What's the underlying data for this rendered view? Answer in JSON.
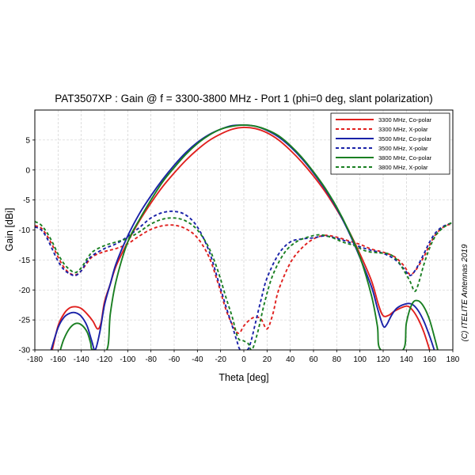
{
  "chart_data": {
    "type": "line",
    "title": "PAT3507XP : Gain @ f = 3300-3800 MHz - Port 1 (phi=0 deg, slant polarization)",
    "xlabel": "Theta [deg]",
    "ylabel": "Gain [dBi]",
    "xlim": [
      -180,
      180
    ],
    "ylim": [
      -30,
      10
    ],
    "xticks": [
      -180,
      -160,
      -140,
      -120,
      -100,
      -80,
      -60,
      -40,
      -20,
      0,
      20,
      40,
      60,
      80,
      100,
      120,
      140,
      160,
      180
    ],
    "yticks": [
      -30,
      -25,
      -20,
      -15,
      -10,
      -5,
      0,
      5
    ],
    "grid": true,
    "legend_position": "top-right",
    "credit": "(C) ITELITE Antennas 2019",
    "series": [
      {
        "name": "3300 MHz, Co-polar",
        "color": "#e0201e",
        "dash": "solid",
        "points": [
          [
            -165,
            -30
          ],
          [
            -160,
            -26
          ],
          [
            -155,
            -24
          ],
          [
            -150,
            -23
          ],
          [
            -145,
            -22.8
          ],
          [
            -140,
            -23.1
          ],
          [
            -135,
            -24
          ],
          [
            -130,
            -25.2
          ],
          [
            -126,
            -26.5
          ],
          [
            -123,
            -25.5
          ],
          [
            -120,
            -22
          ],
          [
            -115,
            -19
          ],
          [
            -110,
            -16
          ],
          [
            -100,
            -12
          ],
          [
            -90,
            -8.5
          ],
          [
            -80,
            -5.5
          ],
          [
            -70,
            -2.8
          ],
          [
            -60,
            -0.5
          ],
          [
            -50,
            1.6
          ],
          [
            -40,
            3.4
          ],
          [
            -30,
            4.9
          ],
          [
            -20,
            6
          ],
          [
            -10,
            6.8
          ],
          [
            0,
            7.1
          ],
          [
            10,
            6.9
          ],
          [
            20,
            6.2
          ],
          [
            30,
            5
          ],
          [
            40,
            3.3
          ],
          [
            50,
            1.3
          ],
          [
            60,
            -1
          ],
          [
            70,
            -3.6
          ],
          [
            80,
            -6.6
          ],
          [
            90,
            -10
          ],
          [
            100,
            -14
          ],
          [
            110,
            -18.5
          ],
          [
            116,
            -22.5
          ],
          [
            120,
            -24.3
          ],
          [
            125,
            -24.2
          ],
          [
            130,
            -23.5
          ],
          [
            140,
            -22.7
          ],
          [
            145,
            -23.3
          ],
          [
            150,
            -24.8
          ],
          [
            155,
            -27
          ],
          [
            160,
            -30
          ]
        ]
      },
      {
        "name": "3300 MHz, X-polar",
        "color": "#e0201e",
        "dash": "dashed",
        "points": [
          [
            -180,
            -9.3
          ],
          [
            -175,
            -9.6
          ],
          [
            -170,
            -10.8
          ],
          [
            -165,
            -12.5
          ],
          [
            -160,
            -14.5
          ],
          [
            -155,
            -16.2
          ],
          [
            -150,
            -17.2
          ],
          [
            -145,
            -17.5
          ],
          [
            -140,
            -16.8
          ],
          [
            -135,
            -15.5
          ],
          [
            -130,
            -14.4
          ],
          [
            -120,
            -13.6
          ],
          [
            -110,
            -13.1
          ],
          [
            -100,
            -12.3
          ],
          [
            -90,
            -11
          ],
          [
            -80,
            -9.9
          ],
          [
            -70,
            -9.3
          ],
          [
            -60,
            -9.2
          ],
          [
            -50,
            -9.8
          ],
          [
            -40,
            -11.3
          ],
          [
            -30,
            -14.5
          ],
          [
            -22,
            -19
          ],
          [
            -15,
            -23.5
          ],
          [
            -8,
            -26.5
          ],
          [
            -4,
            -27.2
          ],
          [
            0,
            -26
          ],
          [
            5,
            -25
          ],
          [
            10,
            -24.5
          ],
          [
            15,
            -24.9
          ],
          [
            20,
            -26.5
          ],
          [
            25,
            -24
          ],
          [
            30,
            -20
          ],
          [
            40,
            -15.5
          ],
          [
            50,
            -13
          ],
          [
            60,
            -11.5
          ],
          [
            70,
            -10.9
          ],
          [
            80,
            -11.2
          ],
          [
            90,
            -11.8
          ],
          [
            100,
            -12.4
          ],
          [
            110,
            -13.2
          ],
          [
            120,
            -13.7
          ],
          [
            130,
            -14.5
          ],
          [
            138,
            -16
          ],
          [
            143,
            -17.4
          ],
          [
            148,
            -16.7
          ],
          [
            155,
            -14.5
          ],
          [
            160,
            -12.5
          ],
          [
            165,
            -10.8
          ],
          [
            170,
            -9.8
          ],
          [
            175,
            -9.2
          ],
          [
            180,
            -9
          ]
        ]
      },
      {
        "name": "3500 MHz, Co-polar",
        "color": "#1a22a8",
        "dash": "solid",
        "points": [
          [
            -166,
            -30
          ],
          [
            -160,
            -26.3
          ],
          [
            -155,
            -24.6
          ],
          [
            -150,
            -23.9
          ],
          [
            -145,
            -23.8
          ],
          [
            -140,
            -24.4
          ],
          [
            -135,
            -26
          ],
          [
            -131,
            -28.5
          ],
          [
            -128,
            -30
          ],
          [
            -124,
            -27
          ],
          [
            -120,
            -22.5
          ],
          [
            -115,
            -19
          ],
          [
            -110,
            -15.6
          ],
          [
            -100,
            -11
          ],
          [
            -90,
            -7.3
          ],
          [
            -80,
            -4.3
          ],
          [
            -70,
            -1.6
          ],
          [
            -60,
            0.8
          ],
          [
            -50,
            2.9
          ],
          [
            -40,
            4.6
          ],
          [
            -30,
            5.9
          ],
          [
            -20,
            6.8
          ],
          [
            -10,
            7.4
          ],
          [
            0,
            7.5
          ],
          [
            10,
            7.3
          ],
          [
            20,
            6.6
          ],
          [
            30,
            5.5
          ],
          [
            40,
            3.9
          ],
          [
            50,
            1.9
          ],
          [
            60,
            -0.5
          ],
          [
            70,
            -3.2
          ],
          [
            80,
            -6.4
          ],
          [
            90,
            -10.2
          ],
          [
            100,
            -14.6
          ],
          [
            110,
            -19.5
          ],
          [
            115,
            -23
          ],
          [
            120,
            -26
          ],
          [
            123,
            -25.8
          ],
          [
            127,
            -24.3
          ],
          [
            132,
            -23
          ],
          [
            140,
            -22.3
          ],
          [
            145,
            -22.4
          ],
          [
            150,
            -23.4
          ],
          [
            155,
            -25.2
          ],
          [
            160,
            -27.7
          ],
          [
            164,
            -30
          ]
        ]
      },
      {
        "name": "3500 MHz, X-polar",
        "color": "#1a22a8",
        "dash": "dashed",
        "points": [
          [
            -180,
            -9.5
          ],
          [
            -175,
            -9.9
          ],
          [
            -170,
            -11.2
          ],
          [
            -165,
            -13.2
          ],
          [
            -160,
            -15.2
          ],
          [
            -155,
            -16.6
          ],
          [
            -150,
            -17.3
          ],
          [
            -145,
            -17.6
          ],
          [
            -140,
            -16.8
          ],
          [
            -135,
            -15.2
          ],
          [
            -130,
            -14.2
          ],
          [
            -120,
            -13.1
          ],
          [
            -110,
            -12.3
          ],
          [
            -100,
            -11.1
          ],
          [
            -90,
            -9.6
          ],
          [
            -80,
            -8
          ],
          [
            -70,
            -7.1
          ],
          [
            -60,
            -6.9
          ],
          [
            -50,
            -7.5
          ],
          [
            -40,
            -9.5
          ],
          [
            -30,
            -13.5
          ],
          [
            -22,
            -18.5
          ],
          [
            -15,
            -23
          ],
          [
            -10,
            -26
          ],
          [
            -6,
            -28.5
          ],
          [
            -3,
            -30
          ],
          [
            3,
            -30
          ],
          [
            6,
            -28.7
          ],
          [
            10,
            -25.5
          ],
          [
            15,
            -21.5
          ],
          [
            20,
            -18
          ],
          [
            30,
            -14
          ],
          [
            40,
            -12
          ],
          [
            50,
            -11.5
          ],
          [
            60,
            -11.3
          ],
          [
            70,
            -11
          ],
          [
            80,
            -11.4
          ],
          [
            90,
            -12
          ],
          [
            100,
            -12.8
          ],
          [
            110,
            -13.4
          ],
          [
            120,
            -13.9
          ],
          [
            130,
            -14.9
          ],
          [
            138,
            -16.5
          ],
          [
            143,
            -17.6
          ],
          [
            148,
            -16.6
          ],
          [
            155,
            -14
          ],
          [
            160,
            -12
          ],
          [
            165,
            -10.5
          ],
          [
            170,
            -9.6
          ],
          [
            175,
            -9.1
          ],
          [
            180,
            -8.8
          ]
        ]
      },
      {
        "name": "3800 MHz, Co-polar",
        "color": "#1a7f22",
        "dash": "solid",
        "points": [
          [
            -158,
            -30
          ],
          [
            -155,
            -28.2
          ],
          [
            -150,
            -26.4
          ],
          [
            -145,
            -25.6
          ],
          [
            -140,
            -25.8
          ],
          [
            -135,
            -27
          ],
          [
            -132,
            -28.8
          ],
          [
            -130,
            -30
          ],
          [
            -118,
            -30
          ],
          [
            -115,
            -24
          ],
          [
            -110,
            -18.5
          ],
          [
            -100,
            -12
          ],
          [
            -90,
            -8.3
          ],
          [
            -80,
            -5
          ],
          [
            -70,
            -2
          ],
          [
            -60,
            0.4
          ],
          [
            -50,
            2.6
          ],
          [
            -40,
            4.4
          ],
          [
            -30,
            5.8
          ],
          [
            -20,
            6.8
          ],
          [
            -10,
            7.3
          ],
          [
            0,
            7.5
          ],
          [
            10,
            7.3
          ],
          [
            20,
            6.7
          ],
          [
            30,
            5.7
          ],
          [
            40,
            4.1
          ],
          [
            50,
            2.1
          ],
          [
            60,
            -0.3
          ],
          [
            70,
            -3
          ],
          [
            80,
            -6.2
          ],
          [
            90,
            -10
          ],
          [
            100,
            -14.5
          ],
          [
            110,
            -21
          ],
          [
            115,
            -26
          ],
          [
            118,
            -30
          ],
          [
            137,
            -30
          ],
          [
            140,
            -25.5
          ],
          [
            145,
            -22.3
          ],
          [
            150,
            -21.8
          ],
          [
            155,
            -22.8
          ],
          [
            160,
            -25
          ],
          [
            165,
            -28.5
          ],
          [
            167,
            -30
          ]
        ]
      },
      {
        "name": "3800 MHz, X-polar",
        "color": "#1a7f22",
        "dash": "dashed",
        "points": [
          [
            -180,
            -8.6
          ],
          [
            -175,
            -9.1
          ],
          [
            -170,
            -10.3
          ],
          [
            -165,
            -12
          ],
          [
            -160,
            -14
          ],
          [
            -155,
            -15.6
          ],
          [
            -150,
            -16.6
          ],
          [
            -145,
            -17.1
          ],
          [
            -140,
            -16.3
          ],
          [
            -135,
            -14.8
          ],
          [
            -130,
            -13.6
          ],
          [
            -120,
            -12.6
          ],
          [
            -110,
            -12
          ],
          [
            -100,
            -11.4
          ],
          [
            -90,
            -10.3
          ],
          [
            -80,
            -9
          ],
          [
            -70,
            -8.2
          ],
          [
            -60,
            -8
          ],
          [
            -50,
            -8.5
          ],
          [
            -40,
            -10
          ],
          [
            -30,
            -13
          ],
          [
            -22,
            -17
          ],
          [
            -15,
            -21.5
          ],
          [
            -10,
            -24.5
          ],
          [
            -5,
            -28
          ],
          [
            0,
            -28.5
          ],
          [
            4,
            -29
          ],
          [
            7,
            -30
          ],
          [
            12,
            -27
          ],
          [
            18,
            -22
          ],
          [
            25,
            -17.5
          ],
          [
            35,
            -13.8
          ],
          [
            45,
            -12
          ],
          [
            55,
            -11.2
          ],
          [
            65,
            -10.8
          ],
          [
            75,
            -11.2
          ],
          [
            85,
            -12
          ],
          [
            95,
            -12.6
          ],
          [
            105,
            -13.5
          ],
          [
            115,
            -13.8
          ],
          [
            125,
            -14
          ],
          [
            132,
            -15
          ],
          [
            138,
            -16.8
          ],
          [
            143,
            -18.5
          ],
          [
            147,
            -20.2
          ],
          [
            150,
            -19.2
          ],
          [
            155,
            -15.8
          ],
          [
            160,
            -13
          ],
          [
            165,
            -11
          ],
          [
            170,
            -9.9
          ],
          [
            175,
            -9.2
          ],
          [
            180,
            -8.7
          ]
        ]
      }
    ]
  }
}
